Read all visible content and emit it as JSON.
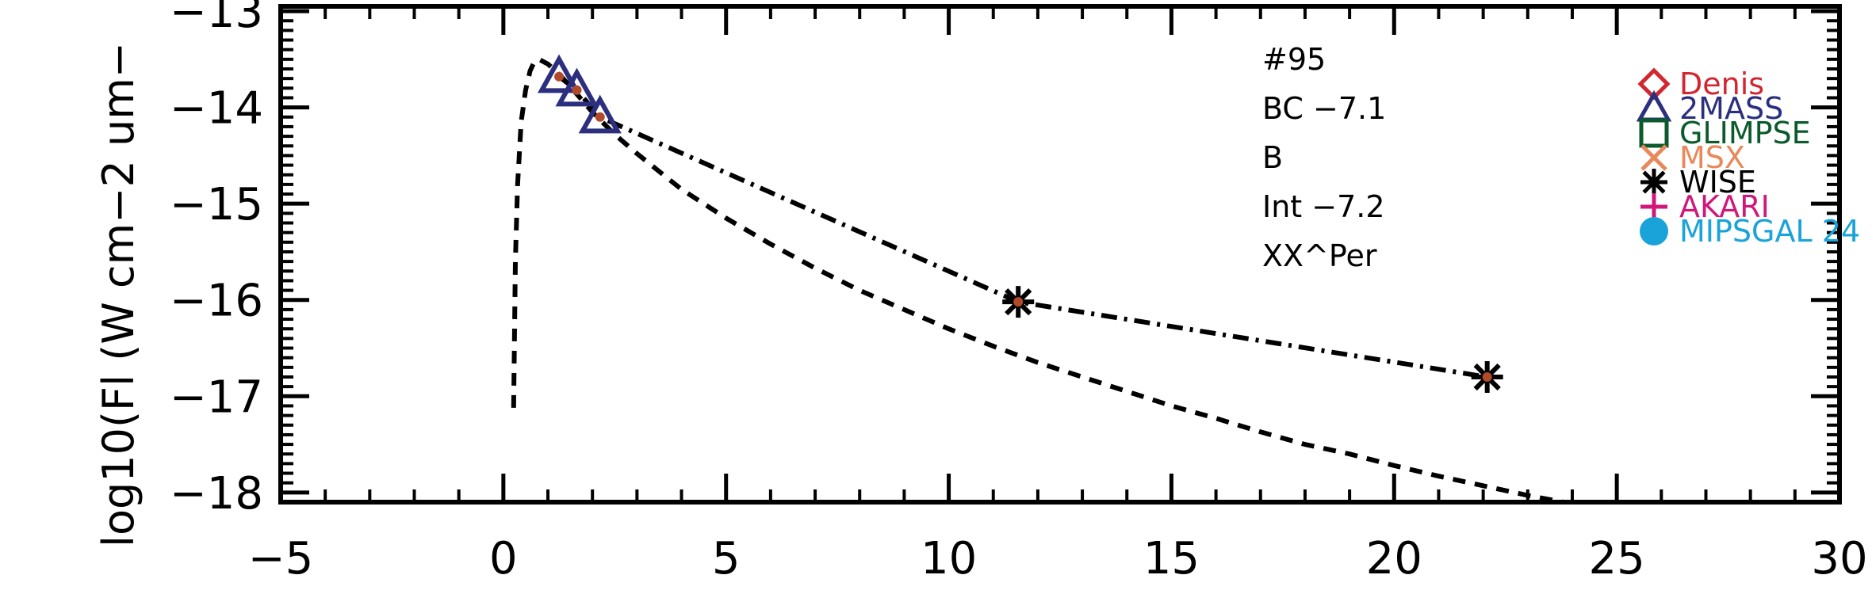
{
  "chart_data": {
    "type": "scatter",
    "xlabel": "",
    "ylabel": "log10(Fl (W cm−2 um−",
    "xlim": [
      -5,
      30
    ],
    "ylim": [
      -18.1,
      -12.95
    ],
    "x_ticks": [
      -5,
      0,
      5,
      10,
      15,
      20,
      25,
      30
    ],
    "x_tick_labels": [
      "−5",
      "0",
      "5",
      "10",
      "15",
      "20",
      "25",
      "30"
    ],
    "y_ticks": [
      -18,
      -17,
      -16,
      -15,
      -14,
      -13
    ],
    "y_tick_labels": [
      "−18",
      "−17",
      "−16",
      "−15",
      "−14",
      "−13"
    ],
    "annotations": [
      "#95",
      "BC −7.1",
      "B",
      "Int −7.2",
      "XX^Per"
    ],
    "legend": {
      "placement": "top-right",
      "entries": [
        {
          "label": "Denis",
          "marker": "diamond",
          "color": "#d22630"
        },
        {
          "label": "2MASS",
          "marker": "triangle",
          "color": "#2b2f7e"
        },
        {
          "label": "GLIMPSE",
          "marker": "square",
          "color": "#0b5a2b"
        },
        {
          "label": "MSX",
          "marker": "x",
          "color": "#e8895a"
        },
        {
          "label": "WISE",
          "marker": "asterisk",
          "color": "#000000"
        },
        {
          "label": "AKARI",
          "marker": "plus",
          "color": "#d0187a"
        },
        {
          "label": "MIPSGAL 24",
          "marker": "circle",
          "color": "#1aa3d9"
        }
      ]
    },
    "series": [
      {
        "style": "dashed",
        "x": [
          0.23,
          0.27,
          0.32,
          0.4,
          0.5,
          0.6,
          0.7,
          0.8,
          1.0,
          1.2,
          1.5,
          2.0,
          2.5,
          3.0,
          4.0,
          5.0,
          6.0,
          7.0,
          8.0,
          9.0,
          10.0,
          11.0,
          12.0,
          13.0,
          14.0,
          15.0,
          16.0,
          17.0,
          18.0,
          19.0,
          20.0,
          21.0,
          22.0,
          23.0,
          23.8
        ],
        "y": [
          -17.12,
          -15.6,
          -14.8,
          -14.15,
          -13.82,
          -13.62,
          -13.52,
          -13.5,
          -13.55,
          -13.63,
          -13.78,
          -14.05,
          -14.28,
          -14.48,
          -14.85,
          -15.15,
          -15.42,
          -15.67,
          -15.9,
          -16.1,
          -16.3,
          -16.48,
          -16.65,
          -16.8,
          -16.95,
          -17.1,
          -17.23,
          -17.37,
          -17.5,
          -17.6,
          -17.72,
          -17.83,
          -17.93,
          -18.03,
          -18.1
        ]
      },
      {
        "style": "dash-dot",
        "x": [
          1.25,
          1.65,
          2.17,
          11.56,
          22.09
        ],
        "y": [
          -13.68,
          -13.82,
          -14.1,
          -16.02,
          -16.8
        ]
      }
    ],
    "points": [
      {
        "survey": "2MASS",
        "marker": "triangle",
        "x": 1.25,
        "y": -13.68
      },
      {
        "survey": "2MASS",
        "marker": "triangle",
        "x": 1.65,
        "y": -13.82
      },
      {
        "survey": "2MASS",
        "marker": "triangle",
        "x": 2.17,
        "y": -14.1
      },
      {
        "survey": "WISE",
        "marker": "asterisk",
        "x": 11.56,
        "y": -16.02
      },
      {
        "survey": "WISE",
        "marker": "asterisk",
        "x": 22.09,
        "y": -16.8
      }
    ],
    "point_fill_color": "#b04a2a",
    "grid": false
  }
}
